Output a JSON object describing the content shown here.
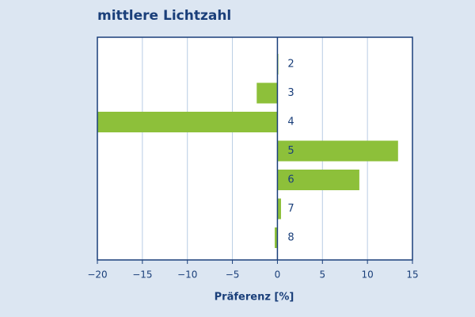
{
  "chart_data": {
    "type": "barh",
    "title": "mittlere Lichtzahl",
    "x_label": "Präferenz [%]",
    "categories": [
      "2",
      "3",
      "4",
      "5",
      "6",
      "7",
      "8"
    ],
    "values": [
      0.1,
      -2.3,
      -20,
      13.4,
      9.1,
      0.4,
      -0.3
    ],
    "color": "#8dc03a",
    "xlim": [
      -20,
      15
    ],
    "xticks": [
      {
        "value": -20,
        "label": "−20"
      },
      {
        "value": -15,
        "label": "−15"
      },
      {
        "value": -10,
        "label": "−10"
      },
      {
        "value": -5,
        "label": "−5"
      },
      0,
      5,
      10,
      15
    ],
    "grid": true
  }
}
